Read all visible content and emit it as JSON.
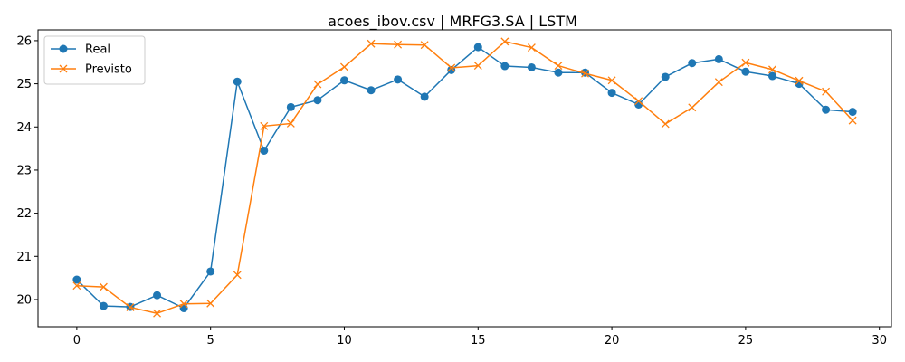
{
  "chart_data": {
    "type": "line",
    "title": "acoes_ibov.csv | MRFG3.SA | LSTM",
    "xlabel": "",
    "ylabel": "",
    "xlim": [
      -1.45,
      30.45
    ],
    "ylim": [
      19.37,
      26.25
    ],
    "x_ticks": [
      0,
      5,
      10,
      15,
      20,
      25,
      30
    ],
    "y_ticks": [
      20,
      21,
      22,
      23,
      24,
      25,
      26
    ],
    "grid": false,
    "legend_position": "top-left",
    "x": [
      0,
      1,
      2,
      3,
      4,
      5,
      6,
      7,
      8,
      9,
      10,
      11,
      12,
      13,
      14,
      15,
      16,
      17,
      18,
      19,
      20,
      21,
      22,
      23,
      24,
      25,
      26,
      27,
      28,
      29
    ],
    "series": [
      {
        "name": "Real",
        "color": "#1f77b4",
        "marker": "circle",
        "values": [
          20.46,
          19.85,
          19.83,
          20.1,
          19.8,
          20.65,
          25.05,
          23.45,
          24.46,
          24.62,
          25.08,
          24.85,
          25.1,
          24.7,
          25.32,
          25.85,
          25.41,
          25.38,
          25.26,
          25.26,
          24.79,
          24.52,
          25.16,
          25.48,
          25.57,
          25.28,
          25.18,
          25.0,
          24.4,
          24.35
        ]
      },
      {
        "name": "Previsto",
        "color": "#ff7f0e",
        "marker": "x",
        "values": [
          20.32,
          20.29,
          19.82,
          19.68,
          19.9,
          19.91,
          20.57,
          24.02,
          24.08,
          24.99,
          25.39,
          25.93,
          25.91,
          25.9,
          25.37,
          25.42,
          25.98,
          25.84,
          25.42,
          25.24,
          25.08,
          24.6,
          24.07,
          24.45,
          25.04,
          25.49,
          25.33,
          25.07,
          24.82,
          24.15
        ]
      }
    ]
  }
}
